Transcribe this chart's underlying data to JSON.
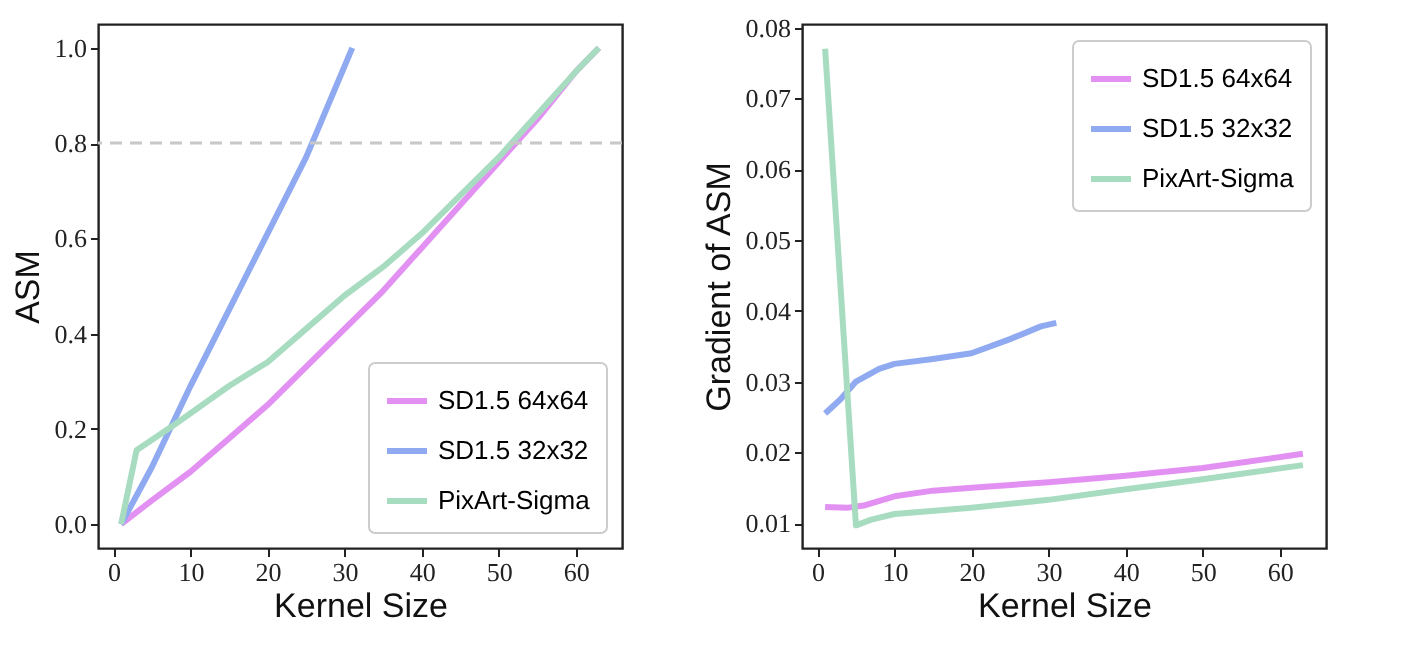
{
  "chart_data": [
    {
      "type": "line",
      "xlabel": "Kernel Size",
      "ylabel": "ASM",
      "xlim": [
        -2,
        66
      ],
      "ylim": [
        -0.05,
        1.05
      ],
      "xticks": [
        0,
        10,
        20,
        30,
        40,
        50,
        60
      ],
      "yticks": [
        {
          "value": 0,
          "label": "0.0"
        },
        0.2,
        0.4,
        0.6,
        0.8,
        {
          "value": 1,
          "label": "1.0"
        }
      ],
      "legend": "bottom right",
      "grid": false,
      "ref_lines": [
        {
          "axis": "y",
          "value": 0.8,
          "color": "#c8c8c8",
          "line_style": "dashed"
        }
      ],
      "series": [
        {
          "name": "SD1.5 64x64",
          "color": "#e291f2",
          "x": [
            1,
            5,
            10,
            15,
            20,
            25,
            30,
            35,
            40,
            45,
            50,
            55,
            60,
            63
          ],
          "values": [
            0,
            0.05,
            0.11,
            0.18,
            0.25,
            0.33,
            0.41,
            0.49,
            0.58,
            0.67,
            0.76,
            0.85,
            0.95,
            1.0
          ]
        },
        {
          "name": "SD1.5 32x32",
          "color": "#8faaf0",
          "x": [
            1,
            5,
            10,
            15,
            20,
            25,
            31
          ],
          "values": [
            0,
            0.12,
            0.29,
            0.45,
            0.61,
            0.77,
            1.0
          ]
        },
        {
          "name": "PixArt-Sigma",
          "color": "#a8dcc0",
          "x": [
            1,
            3,
            8,
            15,
            20,
            25,
            30,
            35,
            40,
            45,
            50,
            55,
            60,
            63
          ],
          "values": [
            0,
            0.155,
            0.21,
            0.29,
            0.34,
            0.41,
            0.48,
            0.54,
            0.61,
            0.69,
            0.77,
            0.86,
            0.95,
            1.0
          ]
        }
      ]
    },
    {
      "type": "line",
      "xlabel": "Kernel Size",
      "ylabel": "Gradient of ASM",
      "xlim": [
        -2,
        66
      ],
      "ylim": [
        0.0065,
        0.0805
      ],
      "xticks": [
        0,
        10,
        20,
        30,
        40,
        50,
        60
      ],
      "yticks": [
        0.01,
        0.02,
        0.03,
        0.04,
        0.05,
        0.06,
        0.07,
        0.08
      ],
      "legend": "top right",
      "grid": false,
      "series": [
        {
          "name": "SD1.5 64x64",
          "color": "#e291f2",
          "x": [
            1,
            4,
            6,
            10,
            15,
            20,
            30,
            40,
            50,
            63
          ],
          "values": [
            0.0123,
            0.0122,
            0.0125,
            0.0138,
            0.0146,
            0.015,
            0.0158,
            0.0167,
            0.0178,
            0.0198
          ]
        },
        {
          "name": "SD1.5 32x32",
          "color": "#8faaf0",
          "x": [
            1,
            3,
            5,
            8,
            10,
            15,
            20,
            25,
            29,
            31
          ],
          "values": [
            0.0255,
            0.0275,
            0.03,
            0.0318,
            0.0325,
            0.0332,
            0.034,
            0.036,
            0.0378,
            0.0383
          ]
        },
        {
          "name": "PixArt-Sigma",
          "color": "#a8dcc0",
          "x": [
            1,
            5,
            7,
            10,
            20,
            30,
            40,
            50,
            63
          ],
          "values": [
            0.077,
            0.0097,
            0.0105,
            0.0113,
            0.0122,
            0.0133,
            0.0148,
            0.0162,
            0.0182
          ]
        }
      ]
    }
  ]
}
